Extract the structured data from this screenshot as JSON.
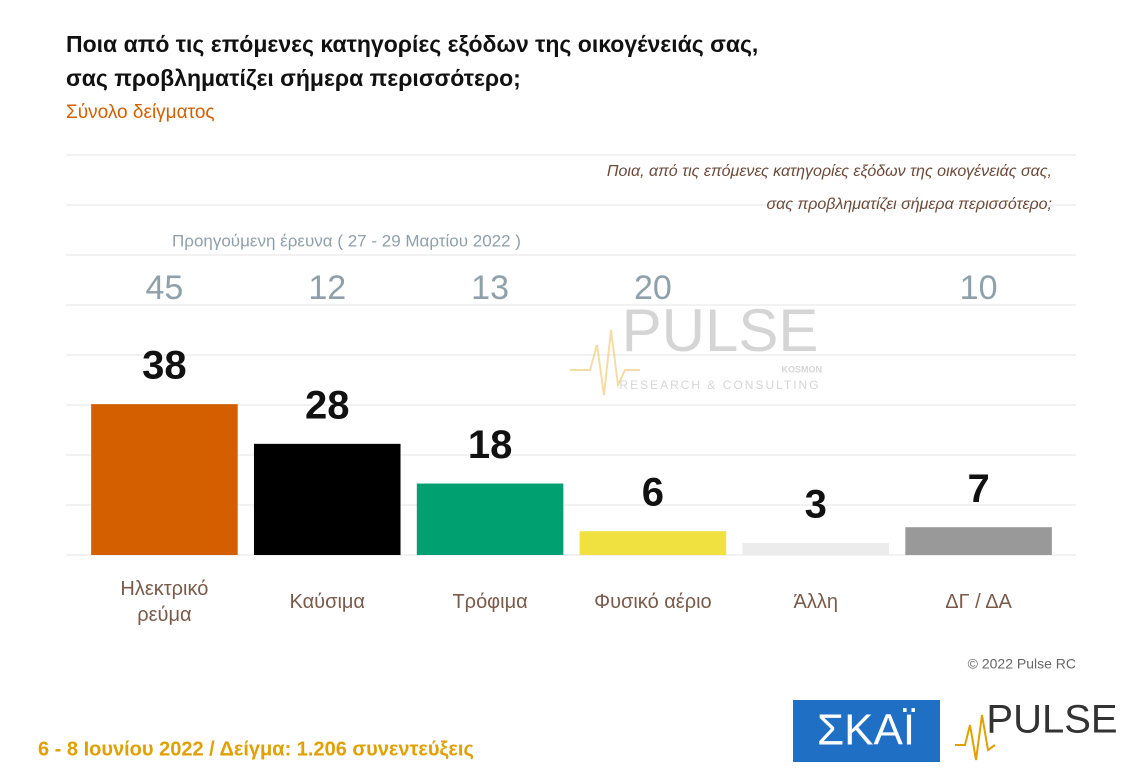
{
  "chart_data": {
    "type": "bar",
    "title_lines": [
      "Ποια από τις επόμενες κατηγορίες εξόδων της οικογένειάς σας,",
      "σας προβληματίζει σήμερα περισσότερο;"
    ],
    "subtitle": "Σύνολο δείγματος",
    "question_lines": [
      "Ποια, από τις επόμενες κατηγορίες εξόδων της οικογένειάς σας,",
      "σας προβληματίζει σήμερα περισσότερο;"
    ],
    "categories": [
      "Ηλεκτρικό ρεύμα",
      "Καύσιμα",
      "Τρόφιμα",
      "Φυσικό αέριο",
      "Άλλη",
      "ΔΓ / ΔΑ"
    ],
    "values": [
      38,
      28,
      18,
      6,
      3,
      7
    ],
    "colors": [
      "#d35f00",
      "#000000",
      "#00a070",
      "#f0e040",
      "#ececec",
      "#999999"
    ],
    "previous": {
      "name": "Προηγούμενη έρευνα  ( 27 - 29 Μαρτίου  2022 )",
      "values": [
        45,
        12,
        13,
        20,
        null,
        10
      ],
      "color": "#8fa0ab"
    },
    "ylim": [
      0,
      100
    ],
    "watermark": {
      "brand": "PULSE",
      "tagline": "RESEARCH & CONSULTING",
      "partner": "KOSMON"
    },
    "copyright": "© 2022 Pulse RC",
    "footer": "6 - 8  Ιουνίου  2022  /  Δείγμα:  1.206 συνεντεύξεις",
    "logos": [
      "ΣΚΑΪ",
      "PULSE"
    ]
  }
}
